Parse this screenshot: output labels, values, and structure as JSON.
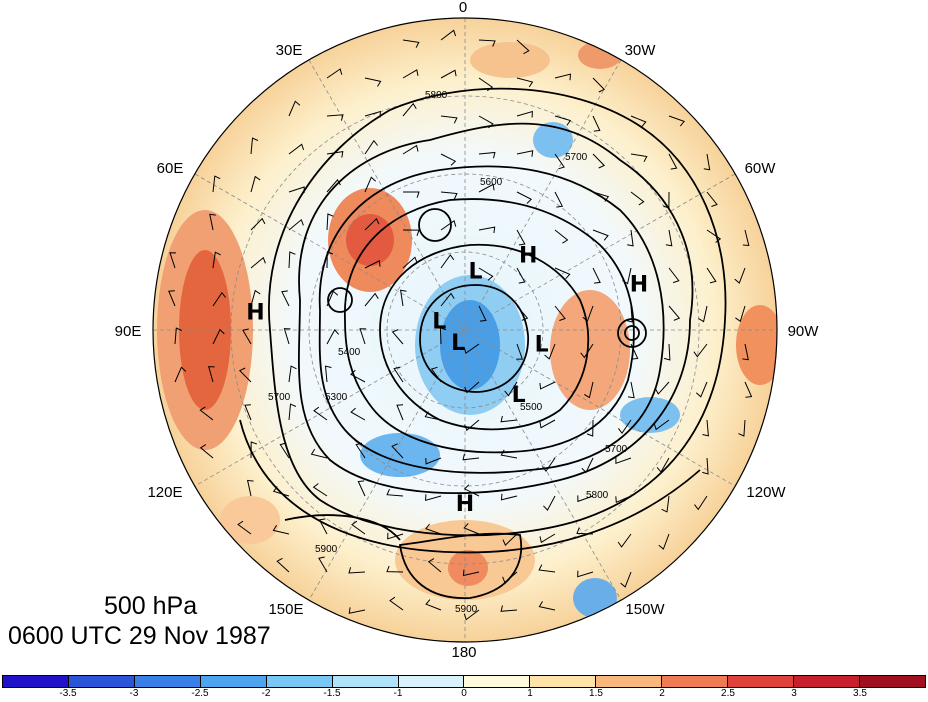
{
  "title": {
    "level": "500 hPa",
    "time": "0600 UTC 29 Nov 1987"
  },
  "map": {
    "projection": "north-polar-stereographic",
    "longitude_labels": [
      "0",
      "30W",
      "60W",
      "90W",
      "120W",
      "150W",
      "180",
      "150E",
      "120E",
      "90E",
      "60E",
      "30E"
    ],
    "contour_labels": [
      "5800",
      "5700",
      "5600",
      "5500",
      "5400",
      "5300",
      "5900"
    ],
    "pressure_centers": [
      {
        "type": "L",
        "lon": 10,
        "lat": 68
      },
      {
        "type": "H",
        "lon": 40,
        "lat": 55
      },
      {
        "type": "L",
        "lon": 290,
        "lat": 80
      },
      {
        "type": "L",
        "lon": 210,
        "lat": 85
      },
      {
        "type": "L",
        "lon": 100,
        "lat": 62
      },
      {
        "type": "H",
        "lon": 75,
        "lat": 30
      },
      {
        "type": "H",
        "lon": 275,
        "lat": 22
      },
      {
        "type": "L",
        "lon": 140,
        "lat": 60
      },
      {
        "type": "H",
        "lon": 180,
        "lat": 32
      }
    ]
  },
  "colorbar": {
    "tick_labels": [
      "-3.5",
      "-3",
      "-2.5",
      "-2",
      "-1.5",
      "-1",
      "0",
      "1",
      "1.5",
      "2",
      "2.5",
      "3",
      "3.5"
    ],
    "colors": [
      "#1f12c8",
      "#2a55d8",
      "#3a7fe6",
      "#4ea3ef",
      "#79c7f5",
      "#aee3fa",
      "#d8f2fc",
      "#fffadc",
      "#fde3a8",
      "#f9b77c",
      "#ef7b54",
      "#e0413a",
      "#c81f2c",
      "#a0101e"
    ]
  }
}
